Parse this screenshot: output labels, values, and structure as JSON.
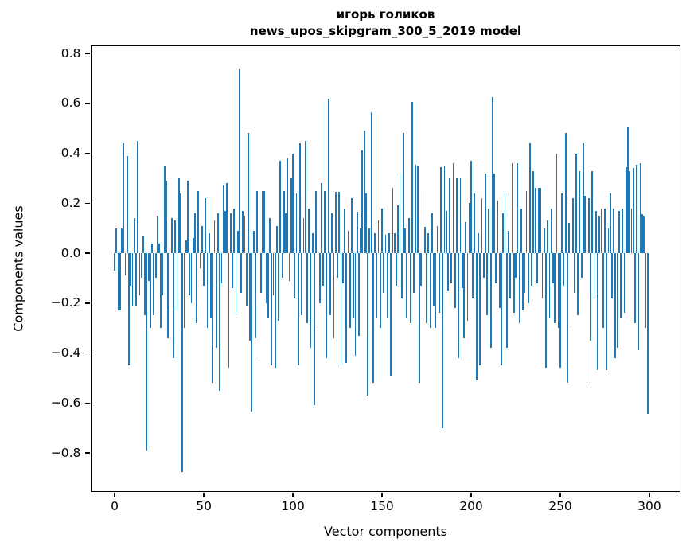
{
  "figure": {
    "title_line1": "игорь голиков",
    "title_line2": "news_upos_skipgram_300_5_2019 model"
  },
  "chart_data": {
    "type": "bar",
    "title": "игорь голиков\nnews_upos_skipgram_300_5_2019 model",
    "xlabel": "Vector components",
    "ylabel": "Components values",
    "bar_color": "#1f77b4",
    "grid": false,
    "legend": "none",
    "xlim": [
      -13,
      317
    ],
    "ylim": [
      -0.953,
      0.829
    ],
    "x_ticks": [
      0,
      50,
      100,
      150,
      200,
      250,
      300
    ],
    "y_ticks": [
      {
        "value": 0.8,
        "label": "0.8"
      },
      {
        "value": 0.6,
        "label": "0.6"
      },
      {
        "value": 0.4,
        "label": "0.4"
      },
      {
        "value": 0.2,
        "label": "0.2"
      },
      {
        "value": 0.0,
        "label": "0.0"
      },
      {
        "value": -0.2,
        "label": "−0.2"
      },
      {
        "value": -0.4,
        "label": "−0.4"
      },
      {
        "value": -0.6,
        "label": "−0.6"
      },
      {
        "value": -0.8,
        "label": "−0.8"
      }
    ],
    "x_start": 0,
    "values": [
      -0.07,
      0.1,
      -0.23,
      -0.23,
      0.1,
      0.44,
      -0.09,
      0.39,
      -0.45,
      -0.13,
      -0.21,
      0.14,
      -0.21,
      0.45,
      -0.17,
      -0.1,
      0.07,
      -0.25,
      -0.79,
      -0.11,
      -0.3,
      0.04,
      -0.25,
      -0.1,
      0.15,
      0.04,
      -0.3,
      -0.17,
      0.35,
      0.29,
      -0.34,
      -0.23,
      0.14,
      -0.42,
      0.13,
      -0.23,
      0.3,
      0.24,
      -0.875,
      -0.3,
      0.05,
      0.29,
      -0.17,
      -0.2,
      0.06,
      0.16,
      -0.28,
      0.25,
      -0.06,
      0.11,
      -0.13,
      0.22,
      -0.3,
      0.08,
      -0.26,
      -0.52,
      0.13,
      -0.38,
      0.16,
      -0.55,
      -0.12,
      0.27,
      0.17,
      0.28,
      -0.46,
      0.16,
      -0.14,
      0.18,
      -0.25,
      0.09,
      0.735,
      -0.16,
      0.17,
      0.15,
      -0.21,
      0.48,
      -0.35,
      -0.635,
      0.09,
      -0.34,
      0.25,
      -0.42,
      -0.16,
      0.25,
      0.25,
      -0.2,
      -0.26,
      0.14,
      -0.45,
      -0.17,
      -0.46,
      0.11,
      -0.27,
      0.37,
      -0.1,
      0.25,
      0.16,
      0.38,
      -0.11,
      0.3,
      0.4,
      -0.18,
      0.24,
      -0.45,
      0.44,
      -0.25,
      0.14,
      0.45,
      -0.28,
      0.18,
      -0.38,
      0.08,
      -0.61,
      0.25,
      -0.3,
      -0.2,
      0.28,
      -0.13,
      0.25,
      -0.42,
      0.62,
      -0.25,
      0.16,
      -0.34,
      0.245,
      -0.1,
      0.245,
      -0.45,
      -0.12,
      0.18,
      -0.44,
      0.09,
      -0.3,
      0.22,
      -0.26,
      -0.41,
      0.165,
      -0.33,
      0.1,
      0.41,
      0.49,
      0.24,
      -0.57,
      0.1,
      0.565,
      -0.52,
      0.08,
      -0.26,
      0.13,
      -0.3,
      0.18,
      -0.16,
      0.075,
      -0.26,
      0.08,
      -0.49,
      0.26,
      0.08,
      -0.13,
      0.19,
      0.32,
      -0.18,
      0.48,
      0.1,
      -0.26,
      0.14,
      -0.28,
      0.605,
      -0.16,
      0.355,
      0.35,
      -0.52,
      -0.13,
      0.25,
      0.105,
      -0.28,
      0.08,
      -0.3,
      0.16,
      -0.21,
      -0.3,
      0.11,
      -0.24,
      0.345,
      -0.7,
      0.35,
      0.17,
      -0.15,
      0.3,
      -0.12,
      0.36,
      -0.22,
      0.3,
      -0.42,
      0.3,
      -0.14,
      -0.34,
      0.125,
      -0.27,
      0.2,
      0.37,
      -0.18,
      0.24,
      -0.51,
      0.08,
      -0.45,
      0.22,
      -0.1,
      0.32,
      -0.25,
      0.18,
      -0.38,
      0.625,
      0.32,
      -0.12,
      0.21,
      -0.22,
      -0.45,
      0.16,
      0.24,
      -0.38,
      0.09,
      -0.18,
      0.36,
      -0.24,
      -0.1,
      0.36,
      -0.28,
      0.18,
      -0.23,
      -0.16,
      0.25,
      -0.2,
      0.44,
      -0.13,
      0.33,
      0.26,
      -0.12,
      0.26,
      0.26,
      -0.18,
      0.1,
      -0.46,
      0.13,
      -0.26,
      0.18,
      -0.12,
      -0.28,
      0.4,
      -0.3,
      -0.46,
      0.24,
      -0.13,
      0.48,
      -0.52,
      0.12,
      -0.3,
      0.22,
      -0.16,
      0.4,
      -0.25,
      0.33,
      -0.1,
      0.44,
      0.23,
      -0.52,
      0.22,
      -0.35,
      0.33,
      -0.18,
      0.17,
      -0.47,
      0.15,
      0.18,
      -0.3,
      0.18,
      -0.47,
      0.1,
      0.24,
      -0.18,
      0.18,
      -0.42,
      -0.38,
      0.17,
      -0.26,
      0.18,
      -0.24,
      0.345,
      0.505,
      0.33,
      0.18,
      0.34,
      -0.28,
      0.355,
      -0.39,
      0.36,
      0.155,
      0.15,
      -0.3,
      -0.645
    ]
  }
}
